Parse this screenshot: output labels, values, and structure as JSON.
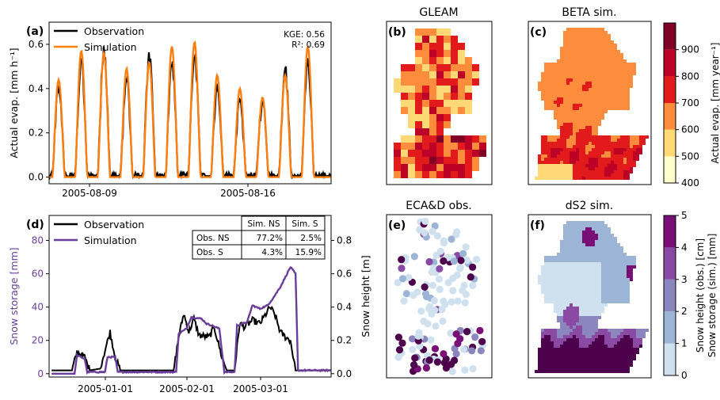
{
  "colors": {
    "observation": "#000000",
    "simulation_a": "#ff7f0e",
    "simulation_d": "#6a3d9a",
    "ylorrd": [
      "#ffffcc",
      "#fed976",
      "#fd8d3c",
      "#e31a1c",
      "#bd0026",
      "#800026"
    ],
    "bupu": [
      "#cfe1ef",
      "#9cb5d6",
      "#8c86bf",
      "#8a4aa4",
      "#7a0e77",
      "#4d004b"
    ]
  },
  "chart_data": [
    {
      "panel": "(a)",
      "type": "line",
      "ylabel": "Actual evap. [mm h⁻¹]",
      "ylim": [
        -0.03,
        0.7
      ],
      "yticks": [
        "0.0",
        "0.2",
        "0.4",
        "0.6"
      ],
      "ytick_values": [
        0.0,
        0.2,
        0.4,
        0.6
      ],
      "xticks": [
        "2005-08-09",
        "2005-08-16"
      ],
      "annotation": [
        "KGE: 0.56",
        "R²: 0.69"
      ],
      "series": [
        {
          "name": "Observation",
          "peaks": [
            0.43,
            0.56,
            0.6,
            0.47,
            0.58,
            0.56,
            0.6,
            0.42,
            0.38,
            0.36,
            0.5,
            0.56
          ]
        },
        {
          "name": "Simulation",
          "peaks": [
            0.44,
            0.57,
            0.56,
            0.49,
            0.52,
            0.59,
            0.61,
            0.46,
            0.4,
            0.36,
            0.46,
            0.59
          ]
        }
      ]
    },
    {
      "panel": "(d)",
      "type": "line",
      "ylabel_left": "Snow storage [mm]",
      "ylabel_right": "Snow height [m]",
      "ylim_left": [
        -2,
        95
      ],
      "yticks_left": [
        "0",
        "20",
        "40",
        "60",
        "80"
      ],
      "ytick_values_left": [
        0,
        20,
        40,
        60,
        80
      ],
      "yticks_right": [
        "0.0",
        "0.2",
        "0.4",
        "0.6",
        "0.8"
      ],
      "xticks": [
        "2005-01-01",
        "2005-02-01",
        "2005-03-01"
      ],
      "series": [
        {
          "name": "Observation",
          "axis": "right (m)",
          "points": [
            [
              0,
              0.02
            ],
            [
              8,
              0.02
            ],
            [
              10,
              0.13
            ],
            [
              13,
              0.1
            ],
            [
              15,
              0.02
            ],
            [
              19,
              0.03
            ],
            [
              21,
              0.14
            ],
            [
              23,
              0.25
            ],
            [
              25,
              0.1
            ],
            [
              27,
              0.02
            ],
            [
              48,
              0.02
            ],
            [
              50,
              0.22
            ],
            [
              52,
              0.36
            ],
            [
              54,
              0.25
            ],
            [
              56,
              0.33
            ],
            [
              58,
              0.23
            ],
            [
              62,
              0.22
            ],
            [
              64,
              0.28
            ],
            [
              67,
              0.1
            ],
            [
              69,
              0.02
            ],
            [
              72,
              0.02
            ],
            [
              74,
              0.3
            ],
            [
              76,
              0.28
            ],
            [
              79,
              0.32
            ],
            [
              82,
              0.3
            ],
            [
              84,
              0.35
            ],
            [
              86,
              0.4
            ],
            [
              88,
              0.35
            ],
            [
              90,
              0.25
            ],
            [
              92,
              0.22
            ],
            [
              94,
              0.2
            ],
            [
              96,
              0.02
            ],
            [
              110,
              0.02
            ]
          ]
        },
        {
          "name": "Simulation",
          "axis": "left (mm)",
          "points": [
            [
              0,
              0
            ],
            [
              9,
              0
            ],
            [
              10,
              11
            ],
            [
              13,
              9
            ],
            [
              14,
              1
            ],
            [
              21,
              1
            ],
            [
              22,
              10
            ],
            [
              25,
              10
            ],
            [
              26,
              1
            ],
            [
              49,
              1
            ],
            [
              50,
              24
            ],
            [
              53,
              27
            ],
            [
              55,
              34
            ],
            [
              59,
              33
            ],
            [
              61,
              30
            ],
            [
              63,
              29
            ],
            [
              66,
              27
            ],
            [
              68,
              1
            ],
            [
              72,
              1
            ],
            [
              73,
              29
            ],
            [
              77,
              31
            ],
            [
              79,
              41
            ],
            [
              82,
              39
            ],
            [
              85,
              41
            ],
            [
              87,
              45
            ],
            [
              90,
              52
            ],
            [
              94,
              64
            ],
            [
              96,
              60
            ],
            [
              97,
              2
            ],
            [
              110,
              2
            ]
          ]
        }
      ],
      "table": {
        "col_headers": [
          "Sim. NS",
          "Sim. S"
        ],
        "rows": [
          {
            "label": "Obs. NS",
            "values": [
              "77.2%",
              "2.5%"
            ]
          },
          {
            "label": "Obs. S",
            "values": [
              "4.3%",
              "15.9%"
            ]
          }
        ]
      }
    },
    {
      "panel": "(b)",
      "type": "heatmap",
      "title": "GLEAM"
    },
    {
      "panel": "(c)",
      "type": "heatmap",
      "title": "BETA sim."
    },
    {
      "panel": "(e)",
      "type": "scatter",
      "title": "ECA&D obs."
    },
    {
      "panel": "(f)",
      "type": "heatmap",
      "title": "dS2 sim."
    },
    {
      "type": "colorbar",
      "label": "Actual evap. [mm year⁻¹]",
      "ticks": [
        "400",
        "500",
        "600",
        "700",
        "800",
        "900"
      ]
    },
    {
      "type": "colorbar",
      "label_lines": [
        "Snow height (obs.) [cm]",
        "Snow storage (sim.) [mm]"
      ],
      "ticks": [
        "0",
        "1",
        "2",
        "3",
        "4",
        "5"
      ]
    }
  ]
}
